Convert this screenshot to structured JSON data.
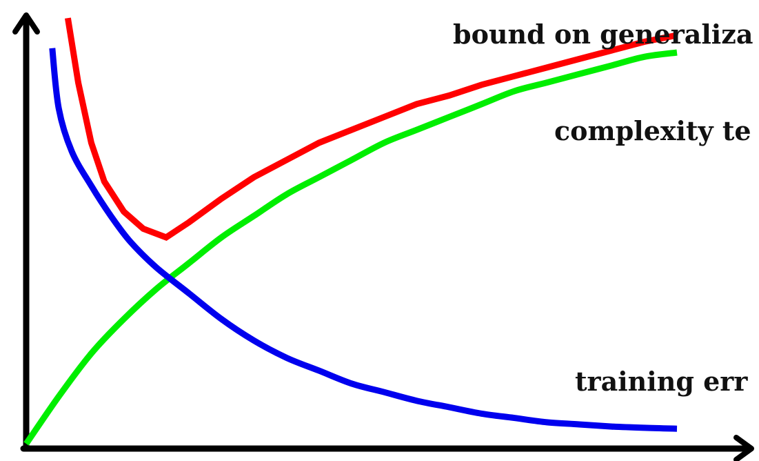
{
  "chart_data": {
    "type": "line",
    "title": "",
    "xlabel": "",
    "ylabel": "",
    "grid": false,
    "legend": "none",
    "xlim": [
      0,
      1
    ],
    "ylim": [
      0,
      1
    ],
    "series": [
      {
        "name": "bound on generaliza",
        "color": "#ff0000",
        "x": [
          0.064,
          0.08,
          0.1,
          0.12,
          0.15,
          0.18,
          0.215,
          0.25,
          0.3,
          0.35,
          0.4,
          0.45,
          0.5,
          0.55,
          0.6,
          0.65,
          0.7,
          0.75,
          0.8,
          0.85,
          0.9,
          0.95,
          1.0
        ],
        "y": [
          0.99,
          0.84,
          0.7,
          0.61,
          0.54,
          0.5,
          0.48,
          0.515,
          0.57,
          0.62,
          0.66,
          0.7,
          0.73,
          0.76,
          0.79,
          0.81,
          0.835,
          0.855,
          0.875,
          0.895,
          0.915,
          0.935,
          0.95
        ]
      },
      {
        "name": "complexity te",
        "color": "#00ee00",
        "x": [
          0.0,
          0.05,
          0.1,
          0.15,
          0.2,
          0.25,
          0.3,
          0.35,
          0.4,
          0.45,
          0.5,
          0.55,
          0.6,
          0.65,
          0.7,
          0.75,
          0.8,
          0.85,
          0.9,
          0.95,
          1.0
        ],
        "y": [
          0.0,
          0.11,
          0.21,
          0.29,
          0.36,
          0.42,
          0.48,
          0.53,
          0.58,
          0.62,
          0.66,
          0.7,
          0.73,
          0.76,
          0.79,
          0.82,
          0.84,
          0.86,
          0.88,
          0.9,
          0.91
        ]
      },
      {
        "name": "training err",
        "color": "#0000ee",
        "x": [
          0.04,
          0.05,
          0.07,
          0.1,
          0.13,
          0.16,
          0.2,
          0.25,
          0.3,
          0.35,
          0.4,
          0.45,
          0.5,
          0.55,
          0.6,
          0.65,
          0.7,
          0.75,
          0.8,
          0.85,
          0.9,
          0.95,
          1.0
        ],
        "y": [
          0.92,
          0.78,
          0.68,
          0.6,
          0.53,
          0.47,
          0.41,
          0.35,
          0.29,
          0.24,
          0.2,
          0.17,
          0.14,
          0.12,
          0.1,
          0.085,
          0.07,
          0.06,
          0.05,
          0.045,
          0.04,
          0.037,
          0.035
        ]
      }
    ]
  }
}
